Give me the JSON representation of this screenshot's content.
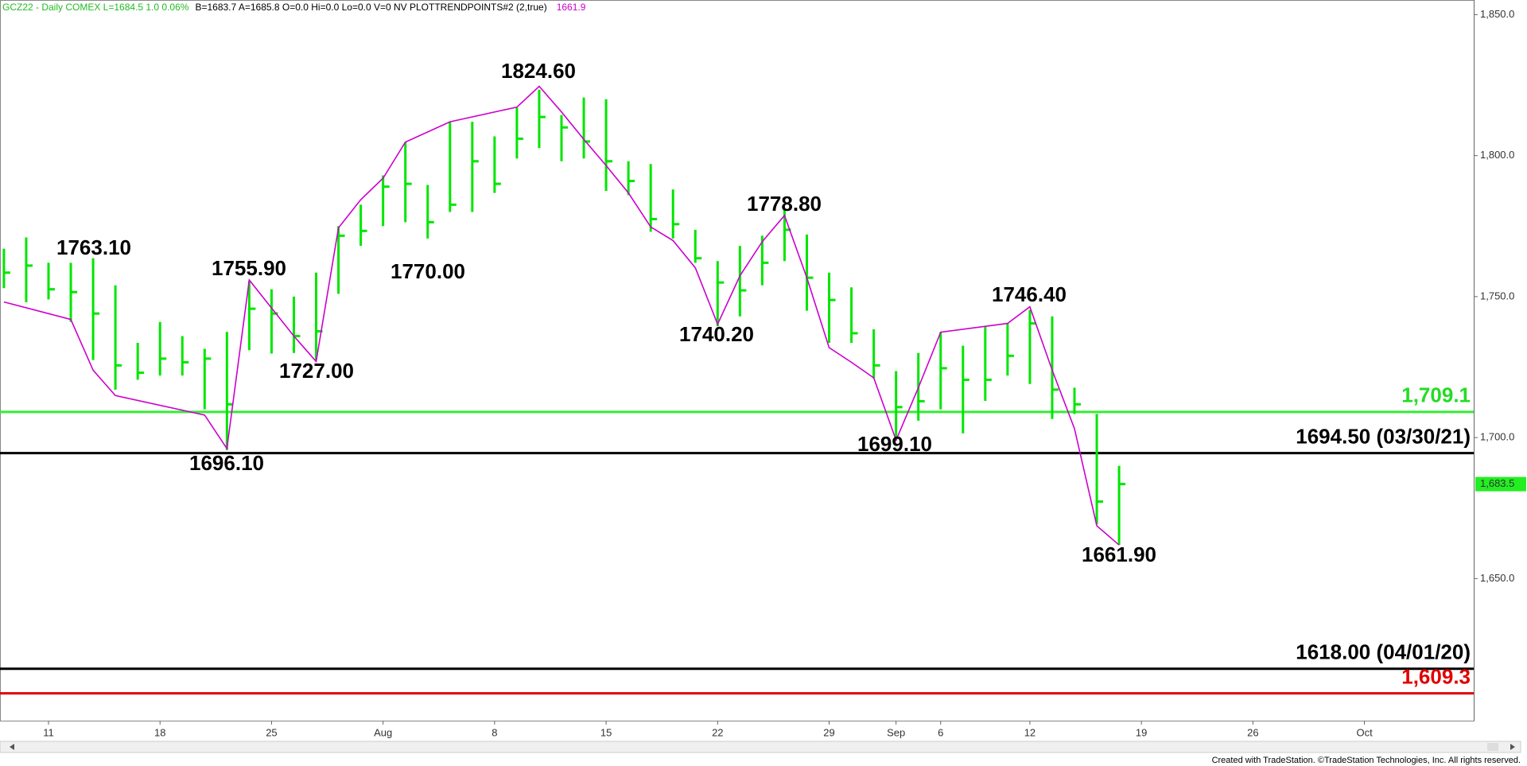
{
  "header": {
    "symbol": "GCZ22 - Daily  COMEX  L=1684.5  1.0  0.06%",
    "quote": "B=1683.7  A=1685.8  O=0.0  Hi=0.0  Lo=0.0  V=0  NV  PLOTTRENDPOINTS#2 (2,true)",
    "study_value": "1661.9"
  },
  "chart_data": {
    "type": "ohlc",
    "xlim": [
      -0.175,
      65.9
    ],
    "xticks": [
      {
        "value": 2,
        "label": "11"
      },
      {
        "value": 7,
        "label": "18"
      },
      {
        "value": 12,
        "label": "25"
      },
      {
        "value": 17,
        "label": "Aug"
      },
      {
        "value": 22,
        "label": "8"
      },
      {
        "value": 27,
        "label": "15"
      },
      {
        "value": 32,
        "label": "22"
      },
      {
        "value": 37,
        "label": "29"
      },
      {
        "value": 40,
        "label": "Sep"
      },
      {
        "value": 42,
        "label": "6"
      },
      {
        "value": 46,
        "label": "12"
      },
      {
        "value": 51,
        "label": "19"
      },
      {
        "value": 56,
        "label": "26"
      },
      {
        "value": 61,
        "label": "Oct"
      }
    ],
    "ylim": [
      1599.6,
      1855.2
    ],
    "yticks": [
      {
        "value": 1650,
        "label": "1,650.0"
      },
      {
        "value": 1700,
        "label": "1,700.0"
      },
      {
        "value": 1750,
        "label": "1,750.0"
      },
      {
        "value": 1800,
        "label": "1,800.0"
      },
      {
        "value": 1850,
        "label": "1,850.0"
      }
    ],
    "bar_color": "#00e600",
    "high": [
      1767,
      1771,
      1762,
      1762,
      1763.6,
      1754,
      1733.6,
      1741,
      1736,
      1731.5,
      1737.5,
      1755.5,
      1752.6,
      1750,
      1758.5,
      1775,
      1782.6,
      1793,
      1804.8,
      1789.6,
      1812,
      1812,
      1806.8,
      1817,
      1823.4,
      1814.4,
      1820.6,
      1820,
      1798,
      1797,
      1788,
      1773.7,
      1762.6,
      1768,
      1771.6,
      1780.7,
      1772,
      1758.5,
      1753.3,
      1738.4,
      1723.6,
      1730,
      1737.5,
      1732.6,
      1739.5,
      1740.5,
      1745.3,
      1743,
      1717.7,
      1708.4,
      1690
    ],
    "low": [
      1753,
      1748,
      1749,
      1741,
      1727.5,
      1717,
      1720.5,
      1722,
      1722,
      1710,
      1695.6,
      1731,
      1729.8,
      1730,
      1727.5,
      1751,
      1768,
      1775,
      1776.4,
      1770.6,
      1780,
      1780,
      1786.8,
      1799,
      1802.7,
      1798,
      1799,
      1787.5,
      1786,
      1773,
      1770.6,
      1762,
      1739.5,
      1743,
      1754,
      1762.6,
      1745,
      1733.6,
      1733.6,
      1721,
      1699,
      1706,
      1710,
      1701.5,
      1713,
      1722,
      1719,
      1706.6,
      1708.4,
      1669.3,
      1661.9
    ],
    "close": [
      1758.5,
      1761,
      1752.6,
      1751.6,
      1744,
      1725.6,
      1723,
      1728,
      1726.7,
      1728,
      1711.8,
      1745.7,
      1744,
      1736,
      1737.7,
      1771.6,
      1773.3,
      1789,
      1790,
      1776.4,
      1782.6,
      1798,
      1790,
      1806,
      1813.7,
      1810,
      1805,
      1798,
      1791,
      1777.5,
      1775.7,
      1763.6,
      1755,
      1752.2,
      1762,
      1773.7,
      1756.7,
      1748.8,
      1737,
      1725.6,
      1710.8,
      1712.9,
      1724.6,
      1720.5,
      1720.5,
      1729,
      1740.5,
      1717,
      1711.8,
      1677.3,
      1683.5
    ],
    "trend": {
      "color": "#cc00cc",
      "x": [
        0,
        3,
        4,
        5,
        9,
        10,
        11,
        13,
        14,
        15,
        16,
        17,
        18,
        20,
        23,
        24,
        25,
        26,
        27,
        28,
        29,
        30,
        31,
        32,
        33,
        34,
        35,
        36,
        37,
        38,
        39,
        40,
        41,
        42,
        45,
        46,
        47,
        48,
        49,
        50
      ],
      "values": [
        1748.1,
        1741.9,
        1723.9,
        1714.9,
        1708.0,
        1696.1,
        1755.9,
        1736.0,
        1727.0,
        1774.4,
        1784.4,
        1792.0,
        1804.8,
        1812.0,
        1817.2,
        1824.6,
        1815.5,
        1805.8,
        1796.5,
        1786.8,
        1774.7,
        1769.9,
        1760.2,
        1740.2,
        1757.4,
        1769.5,
        1778.8,
        1756.7,
        1731.9,
        1726.7,
        1721.2,
        1699.1,
        1717.7,
        1737.4,
        1740.5,
        1746.4,
        1723.9,
        1703.2,
        1668.7,
        1661.9
      ]
    },
    "pivot_labels": [
      "1763.10",
      "1755.90",
      "1727.00",
      "1696.10",
      "1770.00",
      "1824.60",
      "1778.80",
      "1740.20",
      "1699.10",
      "1746.40",
      "1661.90"
    ],
    "levels": [
      {
        "value": 1709.1,
        "label": "1,709.1",
        "color": "#33ee33"
      },
      {
        "value": 1694.5,
        "label": "1694.50 (03/30/21)",
        "color": "#000000"
      },
      {
        "value": 1618,
        "label": "1618.00 (04/01/20)",
        "color": "#000000"
      },
      {
        "value": 1609.3,
        "label": "1,609.3",
        "color": "#e00000"
      }
    ],
    "last_price": {
      "value": 1683.5,
      "label": "1,683.5"
    }
  },
  "footer": "Created with TradeStation. ©TradeStation Technologies, Inc. All rights reserved."
}
